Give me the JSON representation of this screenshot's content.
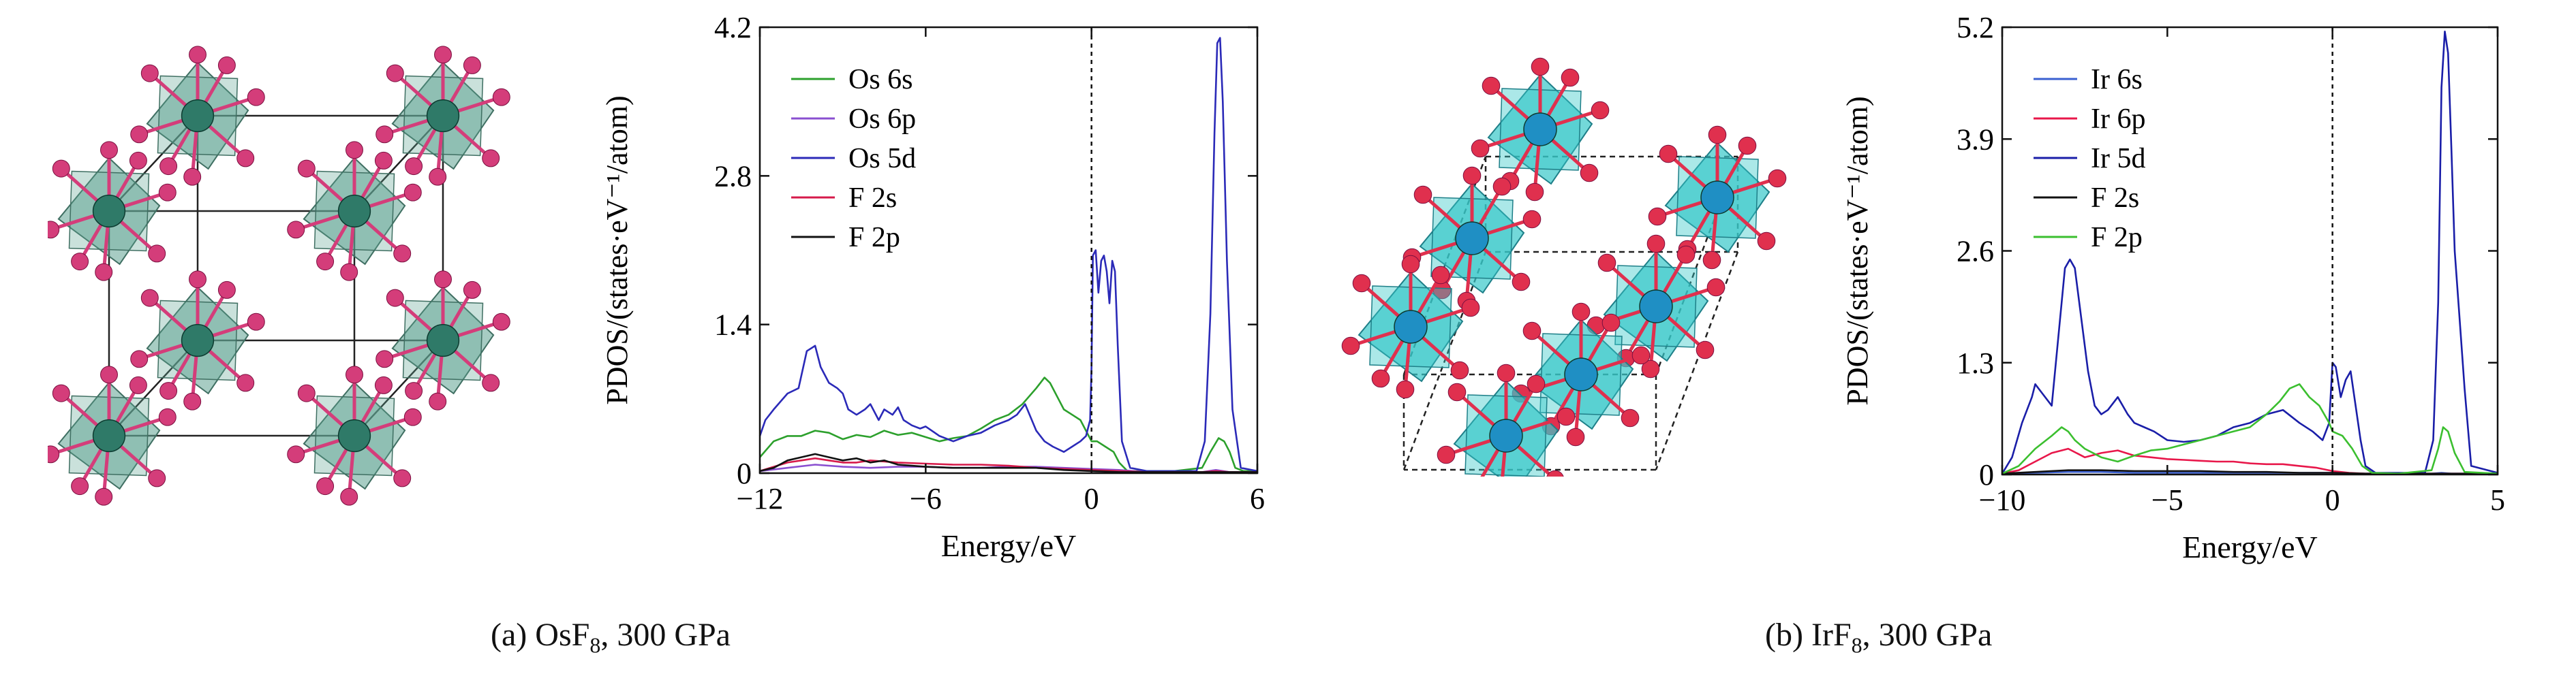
{
  "captions": {
    "a": {
      "prefix": "(a) OsF",
      "sub": "8",
      "suffix": ", 300 GPa"
    },
    "b": {
      "prefix": "(b) IrF",
      "sub": "8",
      "suffix": ", 300 GPa"
    }
  },
  "colors": {
    "os_atom": "#2f7a68",
    "ir_atom": "#1f8fc4",
    "f_atom": "#d43d7a",
    "f_atom_b": "#e0304e"
  },
  "chart_data": [
    {
      "type": "line",
      "ylabel": "PDOS/(states·eV⁻¹/atom)",
      "xlabel": "Energy/eV",
      "xlim": [
        -12,
        6
      ],
      "ylim": [
        0,
        4.2
      ],
      "xticks": [
        "−12",
        "−6",
        "0",
        "6"
      ],
      "xtick_values": [
        -12,
        -6,
        0,
        6
      ],
      "yticks": [
        "0",
        "1.4",
        "2.8",
        "4.2"
      ],
      "ytick_values": [
        0,
        1.4,
        2.8,
        4.2
      ],
      "fermi_level": 0,
      "legend_position": "top-left",
      "series": [
        {
          "name": "Os 6s",
          "color": "#2ca02c",
          "x": [
            -12,
            -11.5,
            -11,
            -10.5,
            -10,
            -9.5,
            -9,
            -8.5,
            -8,
            -7.5,
            -7,
            -6.5,
            -6,
            -5.5,
            -5,
            -4.5,
            -4,
            -3.5,
            -3,
            -2.5,
            -2,
            -1.7,
            -1.5,
            -1.2,
            -1,
            -0.7,
            -0.4,
            -0.1,
            0,
            0.2,
            0.5,
            0.8,
            1,
            1.3,
            2,
            3,
            4,
            4.3,
            4.6,
            4.8,
            5,
            5.2,
            5.5,
            6
          ],
          "y": [
            0.15,
            0.3,
            0.35,
            0.35,
            0.4,
            0.38,
            0.32,
            0.36,
            0.34,
            0.4,
            0.36,
            0.38,
            0.34,
            0.3,
            0.33,
            0.35,
            0.42,
            0.5,
            0.55,
            0.65,
            0.8,
            0.9,
            0.85,
            0.7,
            0.6,
            0.55,
            0.5,
            0.35,
            0.3,
            0.3,
            0.25,
            0.2,
            0.1,
            0.02,
            0.02,
            0.02,
            0.05,
            0.2,
            0.33,
            0.3,
            0.2,
            0.05,
            0.02,
            0.02
          ]
        },
        {
          "name": "Os 6p",
          "color": "#8a4fd0",
          "x": [
            -12,
            -11,
            -10,
            -9,
            -8,
            -7,
            -6,
            -5,
            -4,
            -3,
            -2,
            -1,
            0,
            1,
            2,
            4,
            4.5,
            5,
            6
          ],
          "y": [
            0.02,
            0.05,
            0.08,
            0.06,
            0.05,
            0.06,
            0.06,
            0.05,
            0.05,
            0.06,
            0.06,
            0.05,
            0.04,
            0.03,
            0.01,
            0.01,
            0.03,
            0.01,
            0.01
          ]
        },
        {
          "name": "Os 5d",
          "color": "#2b2ab8",
          "x": [
            -12,
            -11.8,
            -11.5,
            -11,
            -10.6,
            -10.3,
            -10,
            -9.8,
            -9.5,
            -9.2,
            -9,
            -8.8,
            -8.5,
            -8.2,
            -8,
            -7.7,
            -7.5,
            -7.2,
            -7,
            -6.8,
            -6.5,
            -6.2,
            -6,
            -5.5,
            -5,
            -4.5,
            -4,
            -3.5,
            -3,
            -2.7,
            -2.4,
            -2,
            -1.7,
            -1.4,
            -1,
            -0.7,
            -0.4,
            -0.2,
            -0.05,
            0,
            0.05,
            0.15,
            0.25,
            0.35,
            0.45,
            0.55,
            0.65,
            0.75,
            0.85,
            0.95,
            1.1,
            1.4,
            2,
            3,
            3.8,
            4.1,
            4.3,
            4.45,
            4.55,
            4.65,
            4.75,
            4.9,
            5.1,
            5.4,
            6
          ],
          "y": [
            0.35,
            0.5,
            0.6,
            0.75,
            0.8,
            1.15,
            1.2,
            1.0,
            0.85,
            0.8,
            0.75,
            0.6,
            0.55,
            0.6,
            0.65,
            0.5,
            0.6,
            0.55,
            0.62,
            0.5,
            0.45,
            0.42,
            0.44,
            0.35,
            0.3,
            0.35,
            0.38,
            0.45,
            0.5,
            0.55,
            0.65,
            0.4,
            0.3,
            0.25,
            0.2,
            0.25,
            0.3,
            0.35,
            0.5,
            1.0,
            2.05,
            2.1,
            1.7,
            2.0,
            2.05,
            1.9,
            1.6,
            2.0,
            1.9,
            1.2,
            0.3,
            0.05,
            0.02,
            0.02,
            0.02,
            0.3,
            1.5,
            3.2,
            4.05,
            4.1,
            3.5,
            2.0,
            0.6,
            0.05,
            0.02
          ]
        },
        {
          "name": "F 2s",
          "color": "#d61a4a",
          "x": [
            -12,
            -11.5,
            -11,
            -10.5,
            -10,
            -9.5,
            -9,
            -8.5,
            -8,
            -7,
            -6,
            -5,
            -4,
            -3,
            -2,
            -1,
            0,
            1,
            2,
            4,
            4.5,
            5,
            6
          ],
          "y": [
            0.02,
            0.06,
            0.1,
            0.12,
            0.14,
            0.12,
            0.1,
            0.1,
            0.12,
            0.1,
            0.09,
            0.08,
            0.08,
            0.07,
            0.05,
            0.04,
            0.03,
            0.02,
            0.01,
            0.01,
            0.02,
            0.01,
            0.01
          ]
        },
        {
          "name": "F 2p",
          "color": "#111111",
          "x": [
            -12,
            -11.5,
            -11,
            -10.5,
            -10,
            -9.5,
            -9,
            -8.5,
            -8,
            -7.5,
            -7,
            -6.5,
            -6,
            -5,
            -4,
            -3,
            -2,
            -1,
            0,
            1,
            2,
            4,
            6
          ],
          "y": [
            0.02,
            0.05,
            0.12,
            0.15,
            0.18,
            0.15,
            0.12,
            0.14,
            0.1,
            0.12,
            0.08,
            0.07,
            0.06,
            0.05,
            0.05,
            0.05,
            0.05,
            0.03,
            0.02,
            0.01,
            0.01,
            0.01,
            0.01
          ]
        }
      ]
    },
    {
      "type": "line",
      "ylabel": "PDOS/(states·eV⁻¹/atom)",
      "xlabel": "Energy/eV",
      "xlim": [
        -10,
        5
      ],
      "ylim": [
        0,
        5.2
      ],
      "xticks": [
        "−10",
        "−5",
        "0",
        "5"
      ],
      "xtick_values": [
        -10,
        -5,
        0,
        5
      ],
      "yticks": [
        "0",
        "1.3",
        "2.6",
        "3.9",
        "5.2"
      ],
      "ytick_values": [
        0,
        1.3,
        2.6,
        3.9,
        5.2
      ],
      "fermi_level": 0,
      "legend_position": "top-left",
      "series": [
        {
          "name": "Ir 6s",
          "color": "#3a5fd0",
          "x": [
            -10,
            -9,
            -8,
            -7,
            -6,
            -5,
            -4,
            -3,
            -2,
            -1,
            0,
            1,
            2,
            3,
            3.3,
            3.6,
            4,
            5
          ],
          "y": [
            0.01,
            0.02,
            0.03,
            0.03,
            0.02,
            0.02,
            0.02,
            0.02,
            0.02,
            0.02,
            0.02,
            0.01,
            0.01,
            0.01,
            0.02,
            0.01,
            0.01,
            0.01
          ]
        },
        {
          "name": "Ir 6p",
          "color": "#e8174a",
          "x": [
            -10,
            -9.5,
            -9,
            -8.5,
            -8,
            -7.5,
            -7,
            -6.5,
            -6,
            -5.5,
            -5,
            -4.5,
            -4,
            -3.5,
            -3,
            -2.5,
            -2,
            -1.5,
            -1,
            -0.5,
            0,
            0.5,
            1,
            2,
            5
          ],
          "y": [
            0.01,
            0.05,
            0.15,
            0.25,
            0.3,
            0.2,
            0.25,
            0.28,
            0.22,
            0.2,
            0.18,
            0.17,
            0.16,
            0.15,
            0.15,
            0.13,
            0.12,
            0.12,
            0.1,
            0.08,
            0.04,
            0.02,
            0.01,
            0.01,
            0.01
          ]
        },
        {
          "name": "Ir 5d",
          "color": "#1a1ea8",
          "x": [
            -10,
            -9.7,
            -9.4,
            -9.1,
            -9.0,
            -8.8,
            -8.5,
            -8.3,
            -8.1,
            -7.95,
            -7.8,
            -7.6,
            -7.4,
            -7.2,
            -7,
            -6.8,
            -6.5,
            -6.2,
            -6,
            -5.7,
            -5.4,
            -5,
            -4.5,
            -4,
            -3.5,
            -3,
            -2.5,
            -2,
            -1.5,
            -1,
            -0.6,
            -0.3,
            -0.1,
            0,
            0.1,
            0.25,
            0.4,
            0.55,
            0.7,
            0.85,
            1.0,
            1.3,
            2,
            2.8,
            3.05,
            3.2,
            3.3,
            3.4,
            3.5,
            3.6,
            3.7,
            3.85,
            4.0,
            4.2,
            5
          ],
          "y": [
            0.01,
            0.2,
            0.6,
            0.9,
            1.05,
            0.95,
            0.8,
            1.6,
            2.4,
            2.5,
            2.4,
            1.8,
            1.2,
            0.8,
            0.7,
            0.75,
            0.9,
            0.7,
            0.6,
            0.55,
            0.5,
            0.4,
            0.38,
            0.4,
            0.45,
            0.55,
            0.6,
            0.7,
            0.75,
            0.6,
            0.5,
            0.4,
            0.6,
            1.3,
            1.25,
            0.9,
            1.1,
            1.2,
            0.8,
            0.4,
            0.1,
            0.02,
            0.02,
            0.02,
            0.4,
            2.0,
            4.5,
            5.15,
            4.9,
            3.8,
            2.6,
            1.8,
            1.0,
            0.1,
            0.02
          ]
        },
        {
          "name": "F 2s",
          "color": "#111111",
          "x": [
            -10,
            -9,
            -8,
            -7,
            -6,
            -5,
            -4,
            -3,
            -2,
            -1,
            0,
            1,
            5
          ],
          "y": [
            0.01,
            0.03,
            0.05,
            0.05,
            0.04,
            0.04,
            0.04,
            0.03,
            0.03,
            0.02,
            0.02,
            0.01,
            0.01
          ]
        },
        {
          "name": "F 2p",
          "color": "#3bbf2f",
          "x": [
            -10,
            -9.5,
            -9,
            -8.5,
            -8.2,
            -8,
            -7.8,
            -7.5,
            -7,
            -6.5,
            -6,
            -5.5,
            -5,
            -4.5,
            -4,
            -3.5,
            -3,
            -2.5,
            -2,
            -1.6,
            -1.3,
            -1,
            -0.7,
            -0.4,
            -0.1,
            0,
            0.3,
            0.6,
            0.9,
            1.2,
            2,
            3,
            3.2,
            3.35,
            3.5,
            3.7,
            4,
            5
          ],
          "y": [
            0.01,
            0.1,
            0.3,
            0.45,
            0.55,
            0.5,
            0.4,
            0.3,
            0.2,
            0.15,
            0.22,
            0.28,
            0.3,
            0.35,
            0.4,
            0.45,
            0.5,
            0.55,
            0.7,
            0.85,
            1.0,
            1.05,
            0.9,
            0.8,
            0.6,
            0.5,
            0.45,
            0.3,
            0.1,
            0.02,
            0.01,
            0.05,
            0.3,
            0.55,
            0.5,
            0.25,
            0.03,
            0.01
          ]
        }
      ]
    }
  ]
}
